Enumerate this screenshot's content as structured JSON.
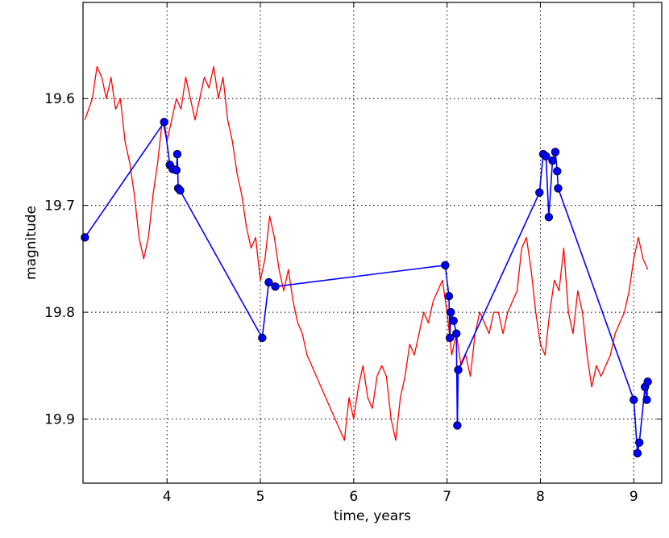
{
  "chart_data": {
    "type": "line",
    "title": "",
    "xlabel": "time, years",
    "ylabel": "magnitude",
    "xlim": [
      3.1,
      9.3
    ],
    "ylim": [
      19.96,
      19.51
    ],
    "y_inverted": true,
    "grid": true,
    "x_ticks": [
      4,
      5,
      6,
      7,
      8,
      9
    ],
    "x_tick_labels": [
      "4",
      "5",
      "6",
      "7",
      "8",
      "9"
    ],
    "y_ticks": [
      19.6,
      19.7,
      19.8,
      19.9
    ],
    "y_tick_labels": [
      "19.6",
      "19.7",
      "19.8",
      "19.9"
    ],
    "colors": {
      "model": "#ff0000",
      "observed": "#0000ff",
      "axes": "#000000"
    },
    "series": [
      {
        "style": "line",
        "color": "#ff0000",
        "x": [
          3.12,
          3.2,
          3.25,
          3.3,
          3.35,
          3.4,
          3.45,
          3.5,
          3.55,
          3.6,
          3.65,
          3.7,
          3.75,
          3.8,
          3.85,
          3.9,
          3.95,
          4.0,
          4.05,
          4.1,
          4.15,
          4.2,
          4.25,
          4.3,
          4.35,
          4.4,
          4.45,
          4.5,
          4.55,
          4.6,
          4.65,
          4.7,
          4.75,
          4.8,
          4.85,
          4.9,
          4.95,
          5.0,
          5.05,
          5.1,
          5.15,
          5.2,
          5.25,
          5.3,
          5.35,
          5.4,
          5.45,
          5.5,
          5.55,
          5.6,
          5.65,
          5.7,
          5.75,
          5.8,
          5.85,
          5.9,
          5.95,
          6.0,
          6.05,
          6.1,
          6.15,
          6.2,
          6.25,
          6.3,
          6.35,
          6.4,
          6.45,
          6.5,
          6.55,
          6.6,
          6.65,
          6.7,
          6.75,
          6.8,
          6.85,
          6.9,
          6.95,
          7.0,
          7.05,
          7.1,
          7.15,
          7.2,
          7.25,
          7.3,
          7.35,
          7.4,
          7.45,
          7.5,
          7.55,
          7.6,
          7.65,
          7.7,
          7.75,
          7.8,
          7.85,
          7.9,
          7.95,
          8.0,
          8.05,
          8.1,
          8.15,
          8.2,
          8.25,
          8.3,
          8.35,
          8.4,
          8.45,
          8.5,
          8.55,
          8.6,
          8.65,
          8.7,
          8.75,
          8.8,
          8.85,
          8.9,
          8.95,
          9.0,
          9.05,
          9.1,
          9.15
        ],
        "y": [
          19.62,
          19.6,
          19.57,
          19.58,
          19.6,
          19.58,
          19.61,
          19.6,
          19.64,
          19.66,
          19.69,
          19.73,
          19.75,
          19.73,
          19.69,
          19.66,
          19.62,
          19.64,
          19.62,
          19.6,
          19.61,
          19.58,
          19.6,
          19.62,
          19.6,
          19.58,
          19.59,
          19.57,
          19.6,
          19.58,
          19.62,
          19.64,
          19.67,
          19.69,
          19.72,
          19.74,
          19.73,
          19.77,
          19.75,
          19.71,
          19.73,
          19.76,
          19.78,
          19.76,
          19.79,
          19.81,
          19.82,
          19.84,
          19.85,
          19.86,
          19.87,
          19.88,
          19.89,
          19.9,
          19.91,
          19.92,
          19.88,
          19.9,
          19.87,
          19.85,
          19.88,
          19.89,
          19.86,
          19.85,
          19.86,
          19.9,
          19.92,
          19.88,
          19.86,
          19.83,
          19.84,
          19.82,
          19.8,
          19.81,
          19.79,
          19.78,
          19.77,
          19.8,
          19.84,
          19.82,
          19.85,
          19.84,
          19.86,
          19.82,
          19.8,
          19.81,
          19.82,
          19.8,
          19.8,
          19.82,
          19.8,
          19.79,
          19.78,
          19.74,
          19.73,
          19.76,
          19.8,
          19.83,
          19.84,
          19.8,
          19.77,
          19.78,
          19.74,
          19.8,
          19.82,
          19.78,
          19.8,
          19.84,
          19.87,
          19.85,
          19.86,
          19.85,
          19.84,
          19.82,
          19.81,
          19.8,
          19.78,
          19.75,
          19.73,
          19.75,
          19.76
        ]
      },
      {
        "style": "line-markers",
        "color": "#0000ff",
        "x": [
          3.12,
          3.97,
          4.03,
          4.06,
          4.1,
          4.11,
          4.12,
          4.14,
          5.02,
          5.09,
          5.16,
          6.98,
          7.02,
          7.03,
          7.04,
          7.07,
          7.1,
          7.11,
          7.12,
          7.99,
          8.03,
          8.06,
          8.09,
          8.13,
          8.16,
          8.18,
          8.19,
          9.0,
          9.04,
          9.06,
          9.12,
          9.14,
          9.15
        ],
        "y": [
          19.73,
          19.622,
          19.662,
          19.666,
          19.667,
          19.652,
          19.684,
          19.686,
          19.824,
          19.772,
          19.776,
          19.756,
          19.785,
          19.824,
          19.8,
          19.808,
          19.82,
          19.906,
          19.854,
          19.688,
          19.652,
          19.654,
          19.711,
          19.658,
          19.65,
          19.668,
          19.684,
          19.882,
          19.932,
          19.922,
          19.87,
          19.882,
          19.865
        ]
      }
    ]
  }
}
